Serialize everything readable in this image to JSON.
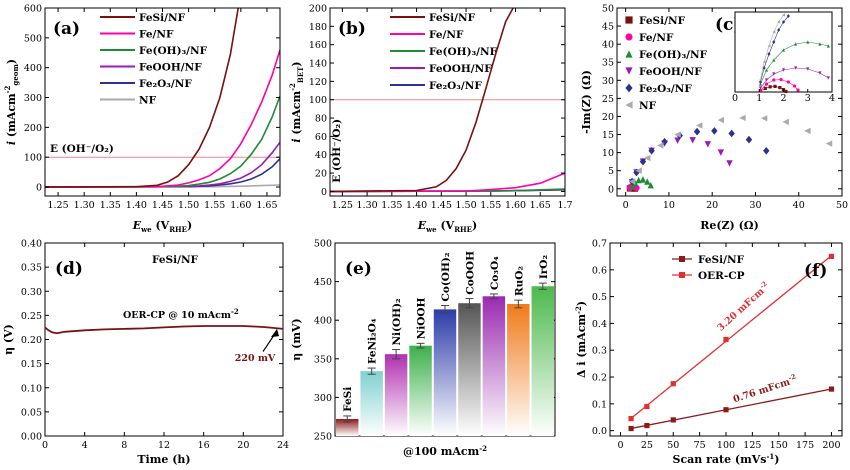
{
  "chart_data": [
    {
      "panel": "(a)",
      "type": "line",
      "xlabel_main": "E",
      "xlabel_sub": "we",
      "xlabel_rest": "(V",
      "xlabel_unit": "RHE",
      "ylabel_main": "i (mAcm",
      "ylabel_sup": "-2",
      "ylabel_sub": "geom",
      "inner_label": "E (OH⁻/O₂)",
      "xlim": [
        1.225,
        1.675
      ],
      "ylim": [
        -30,
        600
      ],
      "xticks": [
        "1.25",
        "1.30",
        "1.35",
        "1.40",
        "1.45",
        "1.50",
        "1.55",
        "1.60",
        "1.65"
      ],
      "yticks": [
        "0",
        "100",
        "200",
        "300",
        "400",
        "500",
        "600"
      ],
      "ref_line_y": 100,
      "legend": [
        "FeSi/NF",
        "Fe/NF",
        "Fe(OH)₃/NF",
        "FeOOH/NF",
        "Fe₂O₃/NF",
        "NF"
      ],
      "colors": [
        "#7a1010",
        "#ff00aa",
        "#1e8c32",
        "#9a1ab4",
        "#2c3290",
        "#aaaaaa"
      ],
      "series": [
        {
          "name": "FeSi/NF",
          "x": [
            1.225,
            1.4,
            1.44,
            1.46,
            1.48,
            1.5,
            1.52,
            1.54,
            1.56,
            1.58,
            1.595
          ],
          "y": [
            0,
            1,
            6,
            17,
            38,
            75,
            127,
            200,
            300,
            445,
            600
          ]
        },
        {
          "name": "Fe/NF",
          "x": [
            1.225,
            1.44,
            1.48,
            1.5,
            1.52,
            1.54,
            1.56,
            1.58,
            1.6,
            1.62,
            1.64,
            1.66,
            1.675
          ],
          "y": [
            0,
            1,
            7,
            14,
            24,
            38,
            62,
            95,
            145,
            210,
            285,
            375,
            460
          ]
        },
        {
          "name": "Fe(OH)₃/NF",
          "x": [
            1.225,
            1.46,
            1.5,
            1.52,
            1.54,
            1.56,
            1.58,
            1.6,
            1.62,
            1.64,
            1.66,
            1.675
          ],
          "y": [
            0,
            1,
            5,
            10,
            16,
            27,
            45,
            70,
            110,
            160,
            235,
            305
          ]
        },
        {
          "name": "FeOOH/NF",
          "x": [
            1.225,
            1.48,
            1.52,
            1.54,
            1.56,
            1.58,
            1.6,
            1.62,
            1.64,
            1.66,
            1.675
          ],
          "y": [
            0,
            1,
            4,
            7,
            11,
            19,
            30,
            48,
            75,
            115,
            150
          ]
        },
        {
          "name": "Fe₂O₃/NF",
          "x": [
            1.225,
            1.5,
            1.54,
            1.56,
            1.58,
            1.6,
            1.62,
            1.64,
            1.66,
            1.675
          ],
          "y": [
            0,
            1,
            4,
            7,
            11,
            17,
            27,
            43,
            68,
            95
          ]
        },
        {
          "name": "NF",
          "x": [
            1.225,
            1.55,
            1.6,
            1.64,
            1.675
          ],
          "y": [
            0,
            1,
            3,
            5,
            7
          ]
        }
      ]
    },
    {
      "panel": "(b)",
      "type": "line",
      "xlabel_main": "E",
      "xlabel_sub": "we",
      "xlabel_rest": "(V",
      "xlabel_unit": "RHE",
      "ylabel_main": "i (mAcm",
      "ylabel_sup": "-2",
      "ylabel_sub": "BET",
      "inner_label": "E (OH⁻/O₂)",
      "xlim": [
        1.225,
        1.7
      ],
      "ylim": [
        -5,
        200
      ],
      "xticks": [
        "1.25",
        "1.30",
        "1.35",
        "1.40",
        "1.45",
        "1.50",
        "1.55",
        "1.60",
        "1.65",
        "1.7"
      ],
      "yticks": [
        "0",
        "20",
        "40",
        "60",
        "80",
        "100",
        "120",
        "140",
        "160",
        "180",
        "200"
      ],
      "ref_line_y": 100,
      "legend": [
        "FeSi/NF",
        "Fe/NF",
        "Fe(OH)₃/NF",
        "FeOOH/NF",
        "Fe₂O₃/NF"
      ],
      "colors": [
        "#7a1010",
        "#ff00aa",
        "#1e8c32",
        "#9a1ab4",
        "#2c3290"
      ],
      "series": [
        {
          "name": "FeSi/NF",
          "x": [
            1.225,
            1.4,
            1.44,
            1.46,
            1.48,
            1.5,
            1.52,
            1.54,
            1.56,
            1.58,
            1.595
          ],
          "y": [
            0,
            1,
            5,
            12,
            25,
            45,
            75,
            112,
            150,
            185,
            200
          ]
        },
        {
          "name": "Fe/NF",
          "x": [
            1.225,
            1.5,
            1.55,
            1.6,
            1.65,
            1.7
          ],
          "y": [
            0,
            0.5,
            2,
            4,
            9,
            20
          ]
        },
        {
          "name": "Fe(OH)₃/NF",
          "x": [
            1.225,
            1.55,
            1.62,
            1.7
          ],
          "y": [
            0,
            0.5,
            1.2,
            2.5
          ]
        },
        {
          "name": "FeOOH/NF",
          "x": [
            1.225,
            1.55,
            1.62,
            1.7
          ],
          "y": [
            0,
            0.4,
            1.0,
            2.0
          ]
        },
        {
          "name": "Fe₂O₃/NF",
          "x": [
            1.225,
            1.55,
            1.62,
            1.7
          ],
          "y": [
            0,
            0.4,
            0.9,
            1.8
          ]
        }
      ]
    },
    {
      "panel": "(c)",
      "type": "scatter",
      "xlabel": "Re(Z) (Ω)",
      "ylabel": "-Im(Z) (Ω)",
      "xlim": [
        -2,
        50
      ],
      "ylim": [
        -2,
        50
      ],
      "xticks": [
        "0",
        "10",
        "20",
        "30",
        "40",
        "50"
      ],
      "yticks": [
        "0",
        "5",
        "10",
        "15",
        "20",
        "25",
        "30",
        "35",
        "40",
        "45",
        "50"
      ],
      "legend": [
        "FeSi/NF",
        "Fe/NF",
        "Fe(OH)₃/NF",
        "FeOOH/NF",
        "Fe₂O₃/NF",
        "NF"
      ],
      "colors": [
        "#7a1010",
        "#ff00aa",
        "#1e8c32",
        "#9a1ab4",
        "#2c3290",
        "#aaaaaa"
      ],
      "markers": [
        "square",
        "circle",
        "triangle-up",
        "triangle-down",
        "diamond",
        "triangle-left"
      ],
      "series": [
        {
          "name": "FeSi/NF",
          "x": [
            1.0,
            1.3,
            1.6,
            1.9,
            2.1
          ],
          "y": [
            0.1,
            0.25,
            0.3,
            0.2,
            0.05
          ]
        },
        {
          "name": "Fe/NF",
          "x": [
            1.0,
            1.3,
            1.7,
            2.1,
            2.5
          ],
          "y": [
            0.2,
            0.6,
            0.8,
            0.6,
            0.2
          ]
        },
        {
          "name": "Fe(OH)₃/NF",
          "x": [
            1.5,
            2.2,
            3.0,
            4.0,
            5.0,
            5.8
          ],
          "y": [
            0.6,
            1.6,
            2.4,
            2.6,
            2.0,
            1.0
          ]
        },
        {
          "name": "FeOOH/NF",
          "x": [
            1.5,
            2.5,
            4.0,
            6.0,
            9.0,
            12.0,
            15.5,
            19.0,
            22.0,
            24.0
          ],
          "y": [
            1.8,
            4.5,
            7.5,
            10.5,
            12.5,
            13.3,
            13.4,
            12.3,
            10.0,
            7.0
          ]
        },
        {
          "name": "Fe₂O₃/NF",
          "x": [
            1.5,
            2.5,
            4.0,
            6.0,
            9.0,
            12.5,
            16.5,
            20.5,
            24.5,
            28.5,
            32.5
          ],
          "y": [
            2.0,
            4.5,
            7.5,
            10.5,
            13.0,
            14.7,
            15.8,
            16.0,
            15.3,
            13.6,
            10.5
          ]
        },
        {
          "name": "NF",
          "x": [
            1.5,
            3.0,
            5.0,
            8.0,
            12.0,
            17.0,
            22.0,
            27.0,
            32.0,
            37.0,
            42.0,
            47.0
          ],
          "y": [
            2.0,
            5.0,
            8.5,
            12.0,
            15.0,
            17.5,
            19.0,
            19.6,
            19.5,
            18.5,
            16.0,
            12.5
          ]
        }
      ],
      "inset": {
        "xlim": [
          0,
          4
        ],
        "ylim": [
          0,
          4
        ],
        "xticks": [
          "0",
          "1",
          "2",
          "3",
          "4"
        ],
        "series": [
          {
            "name": "FeSi/NF",
            "x": [
              1.05,
              1.25,
              1.45,
              1.65,
              1.85,
              2.0,
              2.1
            ],
            "y": [
              0.05,
              0.18,
              0.26,
              0.28,
              0.22,
              0.12,
              0.03
            ]
          },
          {
            "name": "Fe/NF",
            "x": [
              1.05,
              1.3,
              1.6,
              1.9,
              2.2,
              2.45,
              2.6
            ],
            "y": [
              0.08,
              0.4,
              0.6,
              0.62,
              0.5,
              0.3,
              0.1
            ]
          },
          {
            "name": "Fe(OH)₃/NF",
            "x": [
              1.05,
              1.3,
              1.6,
              2.0,
              2.5,
              3.0,
              3.5,
              3.85
            ],
            "y": [
              0.4,
              1.1,
              1.6,
              2.1,
              2.4,
              2.5,
              2.4,
              2.3
            ]
          },
          {
            "name": "FeOOH/NF",
            "x": [
              1.05,
              1.3,
              1.6,
              2.0,
              2.5,
              3.0,
              3.5,
              3.85
            ],
            "y": [
              0.2,
              0.6,
              0.9,
              1.1,
              1.2,
              1.15,
              0.95,
              0.7
            ]
          },
          {
            "name": "Fe₂O₃/NF",
            "x": [
              1.05,
              1.2,
              1.4,
              1.6,
              1.8,
              2.0,
              2.2
            ],
            "y": [
              0.5,
              1.2,
              1.9,
              2.5,
              3.1,
              3.5,
              3.8
            ]
          },
          {
            "name": "NF",
            "x": [
              1.05,
              1.2,
              1.4,
              1.6,
              1.8,
              2.0
            ],
            "y": [
              0.6,
              1.5,
              2.3,
              3.0,
              3.5,
              3.85
            ]
          }
        ]
      }
    },
    {
      "panel": "(d)",
      "type": "line",
      "title": "FeSi/NF",
      "xlabel": "Time (h)",
      "ylabel_main": "η (V)",
      "xlim": [
        0,
        24
      ],
      "ylim": [
        0,
        0.4
      ],
      "xticks": [
        "0",
        "4",
        "8",
        "12",
        "16",
        "20",
        "24"
      ],
      "yticks": [
        "0.00",
        "0.05",
        "0.10",
        "0.15",
        "0.20",
        "0.25",
        "0.30",
        "0.35",
        "0.40"
      ],
      "annotation": "OER-CP @ 10 mAcm",
      "annotation_sup": "-2",
      "end_label": "220 mV",
      "colors": [
        "#7a1010"
      ],
      "series": [
        {
          "name": "FeSi/NF",
          "x": [
            0,
            0.3,
            0.7,
            1.2,
            2,
            4,
            6,
            8,
            10,
            12,
            14,
            16,
            18,
            20,
            21,
            22,
            23,
            24
          ],
          "y": [
            0.225,
            0.22,
            0.215,
            0.213,
            0.216,
            0.219,
            0.221,
            0.222,
            0.223,
            0.225,
            0.227,
            0.228,
            0.228,
            0.228,
            0.227,
            0.226,
            0.224,
            0.222
          ]
        }
      ]
    },
    {
      "panel": "(e)",
      "type": "bar",
      "xlabel": "@100 mAcm",
      "xlabel_sup": "-2",
      "ylabel": "η (mV)",
      "ylim": [
        250,
        500
      ],
      "yticks": [
        "250",
        "300",
        "350",
        "400",
        "450",
        "500"
      ],
      "categories": [
        "FeSi",
        "FeNi₂O₄",
        "Ni(OH)₂",
        "NiOOH",
        "Co(OH)₂",
        "CoOOH",
        "Co₃O₄",
        "RuO₂",
        "IrO₂"
      ],
      "values": [
        272,
        334,
        356,
        367,
        414,
        422,
        431,
        421,
        444
      ],
      "errors": [
        4,
        4,
        6,
        3,
        5,
        6,
        3,
        5,
        4
      ],
      "colors": [
        "#8b1a1a",
        "#7fd0d0",
        "#b030b0",
        "#3cb04c",
        "#2c3ca8",
        "#555555",
        "#9a2ab0",
        "#f07a1a",
        "#4cb84c"
      ],
      "label_colors": [
        "#7a1010",
        "#7fd0d0",
        "#b030b0",
        "#3cb04c",
        "#2c3ca8",
        "#111111",
        "#9a2ab0",
        "#f07a1a",
        "#4cb84c"
      ]
    },
    {
      "panel": "(f)",
      "type": "scatter",
      "xlabel": "Scan rate (mVs",
      "xlabel_sup": "-1",
      "xlabel_end": ")",
      "ylabel": "Δ i (mAcm",
      "ylabel_sup": "-2",
      "ylabel_end": ")",
      "xlim": [
        0,
        200
      ],
      "ylim": [
        -0.02,
        0.7
      ],
      "xticks": [
        "0",
        "25",
        "50",
        "75",
        "100",
        "125",
        "150",
        "175",
        "200"
      ],
      "yticks": [
        "0.0",
        "0.1",
        "0.2",
        "0.3",
        "0.4",
        "0.5",
        "0.6",
        "0.7"
      ],
      "legend": [
        "FeSi/NF",
        "OER-CP"
      ],
      "colors": [
        "#8b1a1a",
        "#e03030"
      ],
      "series": [
        {
          "name": "FeSi/NF",
          "x": [
            10,
            25,
            50,
            100,
            200
          ],
          "y": [
            0.008,
            0.019,
            0.04,
            0.078,
            0.155
          ],
          "fit_label": "0.76 mFcm",
          "fit_sup": "-2"
        },
        {
          "name": "OER-CP",
          "x": [
            10,
            25,
            50,
            100,
            200
          ],
          "y": [
            0.045,
            0.09,
            0.175,
            0.34,
            0.65
          ],
          "fit_label": "3.20 mFcm",
          "fit_sup": "-2"
        }
      ]
    }
  ]
}
